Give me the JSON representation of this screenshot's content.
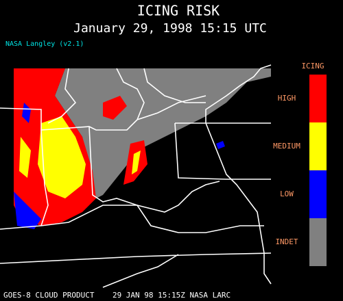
{
  "header": {
    "title": "ICING RISK",
    "subtitle": "January 29, 1998 15:15 UTC",
    "credit": "NASA Langley (v2.1)"
  },
  "legend": {
    "title": "ICING",
    "items": [
      {
        "label": "HIGH",
        "color": "#ff0000"
      },
      {
        "label": "MEDIUM",
        "color": "#ffff00"
      },
      {
        "label": "LOW",
        "color": "#0000ff"
      },
      {
        "label": "INDET",
        "color": "#808080"
      }
    ]
  },
  "footer": "GOES-8 CLOUD PRODUCT    29 JAN 98 15:15Z NASA LARC"
}
